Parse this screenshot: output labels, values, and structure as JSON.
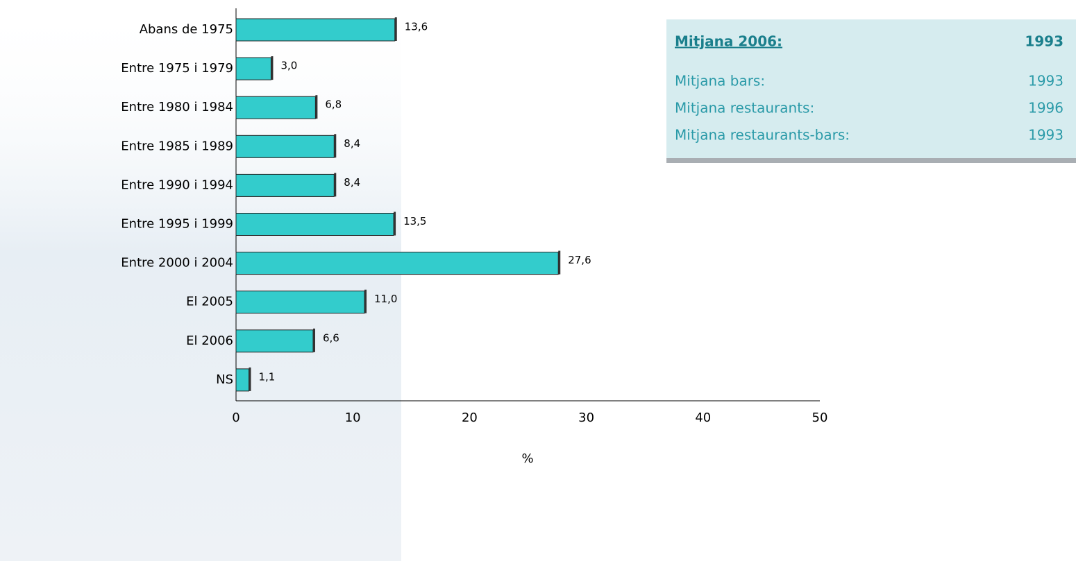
{
  "chart_data": {
    "type": "hbar",
    "categories": [
      "Abans de 1975",
      "Entre 1975 i 1979",
      "Entre 1980 i 1984",
      "Entre 1985 i 1989",
      "Entre 1990 i 1994",
      "Entre 1995 i 1999",
      "Entre 2000 i 2004",
      "El 2005",
      "El 2006",
      "NS"
    ],
    "values": [
      13.6,
      3.0,
      6.8,
      8.4,
      8.4,
      13.5,
      27.6,
      11.0,
      6.6,
      1.1
    ],
    "value_labels": [
      "13,6",
      "3,0",
      "6,8",
      "8,4",
      "8,4",
      "13,5",
      "27,6",
      "11,0",
      "6,6",
      "1,1"
    ],
    "color": "#33cccc",
    "xlim": [
      0,
      50
    ],
    "xticks": [
      0,
      10,
      20,
      30,
      40,
      50
    ],
    "xlabel": "%",
    "grid": false
  },
  "summary_box": {
    "title": "Mitjana 2006:",
    "title_value": 1993,
    "rows": [
      {
        "label": "Mitjana bars:",
        "value": 1993
      },
      {
        "label": "Mitjana restaurants:",
        "value": 1996
      },
      {
        "label": "Mitjana restaurants-bars:",
        "value": 1993
      }
    ]
  }
}
